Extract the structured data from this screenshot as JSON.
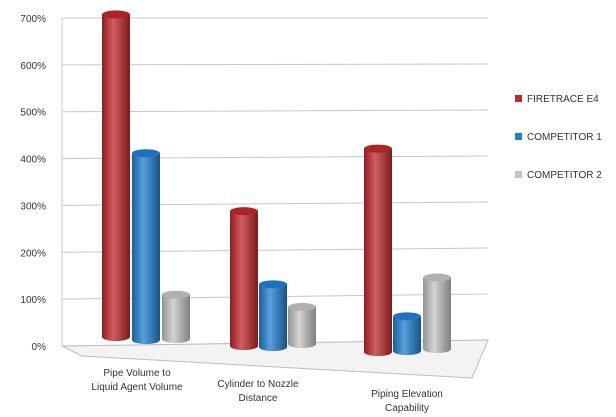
{
  "chart_data": {
    "type": "bar",
    "categories": [
      [
        "Pipe Volume to",
        "Liquid Agent Volume"
      ],
      [
        "Cylinder to Nozzle",
        "Distance"
      ],
      [
        "Piping Elevation",
        "Capability"
      ]
    ],
    "series": [
      {
        "name": "FIRETRACE E4",
        "values": [
          690,
          290,
          440
        ],
        "color": "#c0282b"
      },
      {
        "name": "COMPETITOR 1",
        "values": [
          400,
          135,
          75
        ],
        "color": "#1f7fd1"
      },
      {
        "name": "COMPETITOR 2",
        "values": [
          95,
          80,
          155
        ],
        "color": "#c4c4c4"
      }
    ],
    "yticks": [
      "0%",
      "100%",
      "200%",
      "300%",
      "400%",
      "500%",
      "600%",
      "700%"
    ],
    "ylim": [
      0,
      700
    ],
    "grid": true,
    "legend": "right",
    "title": "",
    "xlabel": "",
    "ylabel": ""
  }
}
